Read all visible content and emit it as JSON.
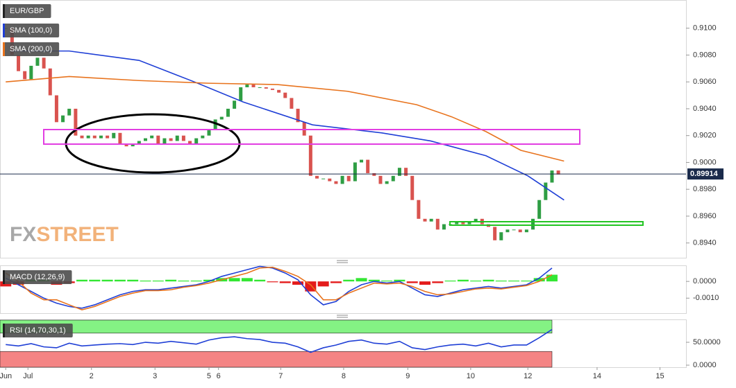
{
  "chart_data": [
    {
      "type": "candlestick",
      "symbol": "EUR/GBP",
      "x": [
        0,
        0.1,
        0.2,
        0.3,
        0.4,
        0.5,
        0.6,
        0.7,
        0.8,
        0.9,
        1,
        1.1,
        1.2,
        1.3,
        1.4,
        1.5,
        1.6,
        1.7,
        1.8,
        1.9,
        2,
        2.1,
        2.2,
        2.3,
        2.4,
        2.5,
        2.6,
        2.7,
        2.8,
        2.9,
        3,
        3.1,
        3.2,
        3.3,
        3.4,
        3.5,
        3.6,
        3.7,
        3.8,
        3.9,
        4,
        4.1,
        4.2,
        4.3,
        4.4,
        4.5,
        4.6,
        4.7,
        4.8,
        4.9,
        5,
        5.1,
        5.2,
        5.3,
        5.4,
        5.5,
        5.6,
        5.7,
        5.8,
        5.9,
        6,
        6.1,
        6.2,
        6.3,
        6.4,
        6.5,
        6.6,
        6.7,
        6.8,
        6.9,
        7,
        7.1,
        7.2,
        7.3,
        7.4,
        7.5,
        7.6,
        7.7,
        7.8,
        7.9,
        8,
        8.1,
        8.2,
        8.3,
        8.4,
        8.5,
        8.6,
        8.7
      ],
      "values": [
        0.91,
        0.908,
        0.9068,
        0.9062,
        0.9072,
        0.9078,
        0.907,
        0.905,
        0.903,
        0.9035,
        0.904,
        0.902,
        0.9018,
        0.902,
        0.9018,
        0.902,
        0.9018,
        0.9022,
        0.9014,
        0.9012,
        0.9014,
        0.9016,
        0.9018,
        0.902,
        0.9014,
        0.9018,
        0.9016,
        0.902,
        0.9016,
        0.9014,
        0.9018,
        0.902,
        0.9024,
        0.9032,
        0.9034,
        0.904,
        0.9046,
        0.9056,
        0.9058,
        0.9056,
        0.9056,
        0.9055,
        0.9054,
        0.9052,
        0.9048,
        0.904,
        0.903,
        0.902,
        0.899,
        0.8988,
        0.8988,
        0.8986,
        0.8984,
        0.899,
        0.8986,
        0.9,
        0.9002,
        0.8992,
        0.899,
        0.8984,
        0.8986,
        0.899,
        0.8996,
        0.899,
        0.8972,
        0.8958,
        0.8956,
        0.8958,
        0.895,
        0.8954,
        0.8954,
        0.8956,
        0.8954,
        0.8956,
        0.8958,
        0.8954,
        0.8952,
        0.8942,
        0.8948,
        0.895,
        0.895,
        0.8948,
        0.895,
        0.8958,
        0.8972,
        0.8985,
        0.8994,
        0.8991
      ],
      "up_color": "#2f9e44",
      "down_color": "#d9534f",
      "series": [
        {
          "name": "SMA (100,0)",
          "color": "#1f3fd6",
          "x": [
            0.08,
            1.0,
            2.1,
            2.97,
            3.74,
            4.83,
            5.92,
            6.69,
            7.56,
            8.22,
            8.79
          ],
          "values": [
            0.9083,
            0.9083,
            0.9076,
            0.906,
            0.9045,
            0.9028,
            0.9022,
            0.9016,
            0.9005,
            0.899,
            0.8972
          ]
        },
        {
          "name": "SMA (200,0)",
          "color": "#e8731d",
          "x": [
            0,
            1.0,
            2.1,
            3.19,
            4.28,
            5.38,
            6.47,
            7.02,
            7.56,
            8.11,
            8.79
          ],
          "values": [
            0.906,
            0.9064,
            0.9061,
            0.9059,
            0.9058,
            0.9053,
            0.9043,
            0.9034,
            0.9023,
            0.9009,
            0.9001
          ]
        }
      ],
      "last_price": 0.89914,
      "watermark": {
        "left": "FX",
        "right": "STREET"
      },
      "xlim": [
        -0.09,
        10.71
      ],
      "ylim": [
        0.8929,
        0.9121
      ],
      "yticks": [
        {
          "value": 0.894,
          "label": "0.8940"
        },
        {
          "value": 0.896,
          "label": "0.8960"
        },
        {
          "value": 0.898,
          "label": "0.8980"
        },
        {
          "value": 0.9,
          "label": "0.9000"
        },
        {
          "value": 0.902,
          "label": "0.9020"
        },
        {
          "value": 0.904,
          "label": "0.9040"
        },
        {
          "value": 0.906,
          "label": "0.9060"
        },
        {
          "value": 0.908,
          "label": "0.9080"
        },
        {
          "value": 0.91,
          "label": "0.9100"
        }
      ]
    },
    {
      "type": "macd",
      "name": "MACD (12,26,9)",
      "x": [
        0,
        0.2,
        0.4,
        0.6,
        0.8,
        1,
        1.2,
        1.4,
        1.6,
        1.8,
        2,
        2.2,
        2.4,
        2.6,
        2.8,
        3,
        3.2,
        3.4,
        3.6,
        3.8,
        4,
        4.2,
        4.4,
        4.6,
        4.8,
        5,
        5.2,
        5.4,
        5.6,
        5.8,
        6,
        6.2,
        6.4,
        6.6,
        6.8,
        7,
        7.2,
        7.4,
        7.6,
        7.8,
        8,
        8.2,
        8.4,
        8.6
      ],
      "histogram": [
        -0.0003,
        -0.0002,
        0.0001,
        0.0001,
        -0.0002,
        -0.0001,
        0.0001,
        0.0001,
        0.0001,
        0.0001,
        0.0001,
        5e-05,
        5e-05,
        0.0001,
        5e-05,
        5e-05,
        0.0001,
        0.0002,
        0.0002,
        0.0002,
        0.0001,
        -5e-05,
        -0.0001,
        -0.0002,
        -0.0006,
        -0.0003,
        -0.0001,
        0.0001,
        0.0002,
        0.0001,
        5e-05,
        0.0001,
        -0.0001,
        -0.0002,
        -0.0001,
        5e-05,
        0.0001,
        5e-05,
        0.0001,
        5e-05,
        5e-05,
        5e-05,
        0.0002,
        0.0004
      ],
      "pos_color": "#33e633",
      "neg_color": "#e41b1b",
      "macd": {
        "color": "#1f3fd6",
        "values": [
          0.0002,
          -0.0002,
          -0.0006,
          -0.001,
          -0.0013,
          -0.0015,
          -0.0016,
          -0.0014,
          -0.0011,
          -0.0008,
          -0.0006,
          -0.0005,
          -0.0005,
          -0.0004,
          -0.0003,
          -0.0002,
          0,
          0.0003,
          0.0005,
          0.0007,
          0.0009,
          0.0008,
          0.0005,
          0.0001,
          -0.0008,
          -0.0014,
          -0.0012,
          -0.0006,
          -0.0002,
          0,
          -0.0001,
          0,
          -0.0004,
          -0.0008,
          -0.0009,
          -0.0007,
          -0.0005,
          -0.0004,
          -0.0003,
          -0.0004,
          -0.0003,
          -0.0002,
          0.0002,
          0.0008
        ]
      },
      "signal": {
        "color": "#e8731d",
        "values": [
          0.0005,
          0,
          -0.0007,
          -0.0011,
          -0.0011,
          -0.0014,
          -0.0017,
          -0.0015,
          -0.0012,
          -0.0009,
          -0.0007,
          -0.00055,
          -0.00055,
          -0.0005,
          -0.00035,
          -0.00025,
          -0.0001,
          0.0001,
          0.0003,
          0.0005,
          0.0008,
          0.00085,
          0.0006,
          0.0003,
          -0.0002,
          -0.0011,
          -0.0011,
          -0.0007,
          -0.0004,
          -0.0001,
          -0.00015,
          -0.0001,
          -0.0003,
          -0.0006,
          -0.0008,
          -0.00075,
          -0.0006,
          -0.00045,
          -0.0004,
          -0.00045,
          -0.00035,
          -0.00025,
          0,
          0.0004
        ]
      },
      "xlim": [
        -0.09,
        10.71
      ],
      "ylim": [
        -0.0019,
        0.00096
      ],
      "yticks": [
        {
          "value": 0,
          "label": "0.0000"
        },
        {
          "value": -0.001,
          "label": "-0.0010"
        }
      ]
    },
    {
      "type": "rsi",
      "name": "RSI (14,70,30,1)",
      "x": [
        0,
        0.2,
        0.4,
        0.6,
        0.8,
        1,
        1.2,
        1.4,
        1.6,
        1.8,
        2,
        2.2,
        2.4,
        2.6,
        2.8,
        3,
        3.2,
        3.4,
        3.6,
        3.8,
        4,
        4.2,
        4.4,
        4.6,
        4.8,
        5,
        5.2,
        5.4,
        5.6,
        5.8,
        6,
        6.2,
        6.4,
        6.6,
        6.8,
        7,
        7.2,
        7.4,
        7.6,
        7.8,
        8,
        8.2,
        8.4,
        8.6
      ],
      "values": [
        45,
        42,
        47,
        40,
        38,
        48,
        42,
        44,
        46,
        47,
        45,
        50,
        48,
        52,
        49,
        46,
        55,
        60,
        62,
        58,
        56,
        50,
        48,
        40,
        28,
        38,
        44,
        52,
        55,
        48,
        46,
        52,
        38,
        34,
        40,
        44,
        46,
        42,
        48,
        40,
        44,
        44,
        60,
        78
      ],
      "color": "#1f3fd6",
      "overbought": 70,
      "oversold": 30,
      "overbought_color": "#84f284",
      "oversold_color": "#f48484",
      "xlim": [
        -0.09,
        10.71
      ],
      "ylim": [
        -4.5,
        98.5
      ],
      "yticks": [
        {
          "value": 50,
          "label": "50.0000"
        },
        {
          "value": 0,
          "label": "0.0000"
        }
      ],
      "xticks": [
        {
          "value": 0,
          "label": "Jun"
        },
        {
          "value": 0.35,
          "label": "Jul"
        },
        {
          "value": 1.35,
          "label": "2"
        },
        {
          "value": 2.35,
          "label": "3"
        },
        {
          "value": 3.2,
          "label": "5"
        },
        {
          "value": 3.35,
          "label": "6"
        },
        {
          "value": 4.33,
          "label": "7"
        },
        {
          "value": 5.32,
          "label": "8"
        },
        {
          "value": 6.33,
          "label": "9"
        },
        {
          "value": 7.32,
          "label": "10"
        },
        {
          "value": 8.22,
          "label": "12"
        },
        {
          "value": 9.31,
          "label": "14"
        },
        {
          "value": 10.3,
          "label": "15"
        }
      ]
    }
  ]
}
